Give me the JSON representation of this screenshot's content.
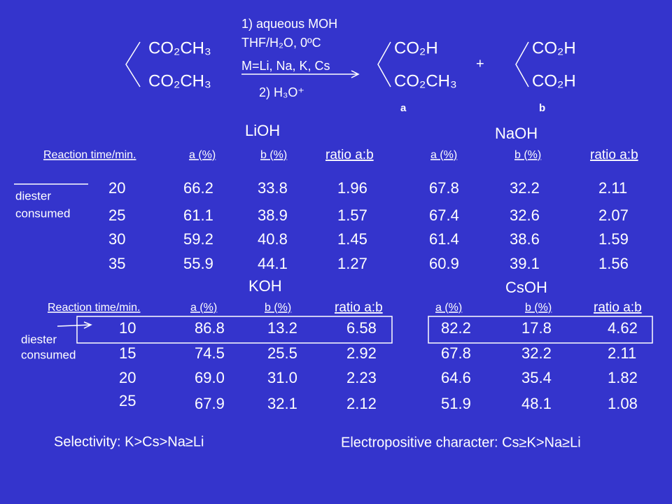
{
  "scheme": {
    "reactant": [
      "CO₂CH₃",
      "CO₂CH₃"
    ],
    "conditions": [
      "1) aqueous MOH",
      "THF/H₂O, 0ºC",
      "M=Li, Na, K, Cs",
      "2) H₃O⁺"
    ],
    "product_a": {
      "groups": [
        "CO₂H",
        "CO₂CH₃"
      ],
      "label": "a"
    },
    "plus": "+",
    "product_b": {
      "groups": [
        "CO₂H",
        "CO₂H"
      ],
      "label": "b"
    }
  },
  "tables": [
    {
      "bases": [
        "LiOH",
        "NaOH"
      ],
      "headers": [
        "Reaction time/min.",
        "a (%)",
        "b (%)",
        "ratio a:b"
      ],
      "side_label": [
        "diester",
        "consumed"
      ],
      "rows": [
        [
          "20",
          "66.2",
          "33.8",
          "1.96",
          "67.8",
          "32.2",
          "2.11"
        ],
        [
          "25",
          "61.1",
          "38.9",
          "1.57",
          "67.4",
          "32.6",
          "2.07"
        ],
        [
          "30",
          "59.2",
          "40.8",
          "1.45",
          "61.4",
          "38.6",
          "1.59"
        ],
        [
          "35",
          "55.9",
          "44.1",
          "1.27",
          "60.9",
          "39.1",
          "1.56"
        ]
      ]
    },
    {
      "bases": [
        "KOH",
        "CsOH"
      ],
      "headers": [
        "Reaction time/min.",
        "a (%)",
        "b (%)",
        "ratio a:b"
      ],
      "side_label": [
        "diester",
        "consumed"
      ],
      "rows": [
        [
          "10",
          "86.8",
          "13.2",
          "6.58",
          "82.2",
          "17.8",
          "4.62"
        ],
        [
          "15",
          "74.5",
          "25.5",
          "2.92",
          "67.8",
          "32.2",
          "2.11"
        ],
        [
          "20",
          "69.0",
          "31.0",
          "2.23",
          "64.6",
          "35.4",
          "1.82"
        ],
        [
          "25",
          "67.9",
          "32.1",
          "2.12",
          "51.9",
          "48.1",
          "1.08"
        ]
      ]
    }
  ],
  "footer": [
    "Selectivity: K>Cs>Na≥Li",
    "Electropositive character: Cs≥K>Na≥Li"
  ]
}
